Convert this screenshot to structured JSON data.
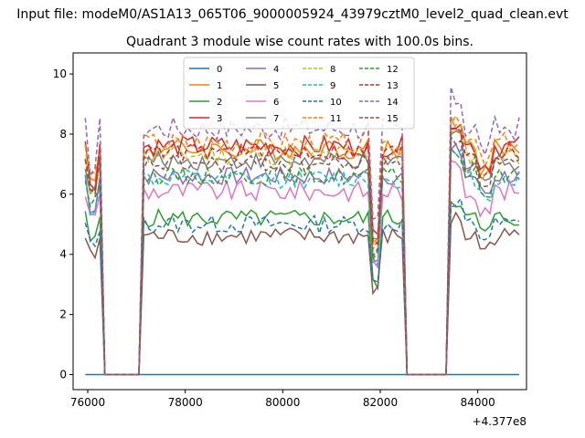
{
  "chart_data": {
    "type": "line",
    "suptitle": "Input file: modeM0/AS1A13_065T06_9000005924_43979cztM0_level2_quad_clean.evt",
    "title": "Quadrant 3 module wise count rates with 100.0s bins.",
    "xlabel": "",
    "ylabel": "",
    "x_offset_label": "+4.377e8",
    "xlim": [
      75700,
      85000
    ],
    "ylim": [
      -0.5,
      10.7
    ],
    "xticks": [
      76000,
      78000,
      80000,
      82000,
      84000
    ],
    "xtick_labels": [
      "76000",
      "78000",
      "80000",
      "82000",
      "84000"
    ],
    "yticks": [
      0,
      2,
      4,
      6,
      8,
      10
    ],
    "ytick_labels": [
      "0",
      "2",
      "4",
      "6",
      "8",
      "10"
    ],
    "legend_placement": "upper-center",
    "gaps": [
      [
        76300,
        77100
      ],
      [
        82500,
        83400
      ]
    ],
    "segments": [
      [
        75950,
        76250
      ],
      [
        77150,
        82450
      ],
      [
        83450,
        84850
      ]
    ],
    "colors": {
      "blue": "#1f77b4",
      "orange": "#ff7f0e",
      "green": "#2ca02c",
      "red": "#d62728",
      "purple": "#9467bd",
      "brown": "#8c564b",
      "pink": "#e377c2",
      "gray": "#7f7f7f",
      "olive": "#bcbd22",
      "cyan": "#17becf"
    },
    "series": [
      {
        "name": "0",
        "style": "solid",
        "color": "#1f77b4",
        "level": 0.0,
        "amp": 0.0
      },
      {
        "name": "1",
        "style": "solid",
        "color": "#ff7f0e",
        "level": 7.5,
        "amp": 0.35
      },
      {
        "name": "2",
        "style": "solid",
        "color": "#2ca02c",
        "level": 5.2,
        "amp": 0.3
      },
      {
        "name": "3",
        "style": "solid",
        "color": "#d62728",
        "level": 7.6,
        "amp": 0.35
      },
      {
        "name": "4",
        "style": "solid",
        "color": "#9467bd",
        "level": 6.6,
        "amp": 0.3
      },
      {
        "name": "5",
        "style": "solid",
        "color": "#8c564b",
        "level": 4.6,
        "amp": 0.3
      },
      {
        "name": "6",
        "style": "solid",
        "color": "#e377c2",
        "level": 6.1,
        "amp": 0.35
      },
      {
        "name": "7",
        "style": "solid",
        "color": "#7f7f7f",
        "level": 7.1,
        "amp": 0.3
      },
      {
        "name": "8",
        "style": "dashed",
        "color": "#bcbd22",
        "level": 7.3,
        "amp": 0.35
      },
      {
        "name": "9",
        "style": "dashed",
        "color": "#17becf",
        "level": 6.5,
        "amp": 0.3
      },
      {
        "name": "10",
        "style": "dashed",
        "color": "#1f77b4",
        "level": 5.0,
        "amp": 0.3
      },
      {
        "name": "11",
        "style": "dashed",
        "color": "#ff7f0e",
        "level": 7.7,
        "amp": 0.35
      },
      {
        "name": "12",
        "style": "dashed",
        "color": "#2ca02c",
        "level": 6.6,
        "amp": 0.3
      },
      {
        "name": "13",
        "style": "dashed",
        "color": "#d62728",
        "level": 7.4,
        "amp": 0.3
      },
      {
        "name": "14",
        "style": "dashed",
        "color": "#9467bd",
        "level": 8.2,
        "amp": 0.4
      },
      {
        "name": "15",
        "style": "dashed",
        "color": "#8c564b",
        "level": 7.0,
        "amp": 0.3
      }
    ]
  }
}
